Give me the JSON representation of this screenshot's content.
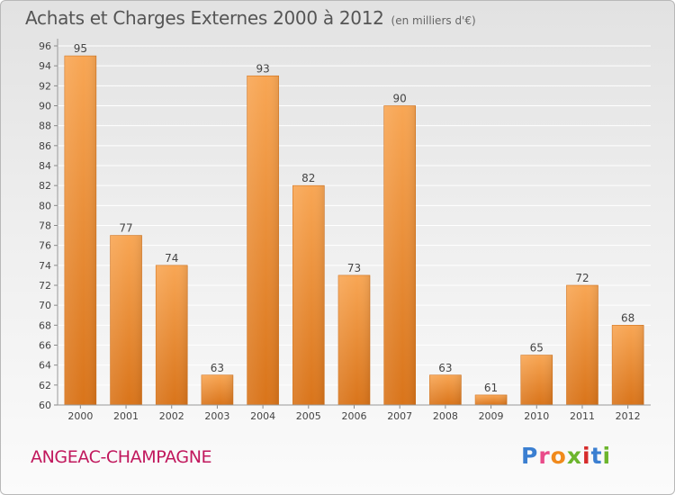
{
  "header": {
    "title": "Achats et Charges Externes 2000 à 2012",
    "unit": "(en milliers d'€)"
  },
  "footer": {
    "commune": "ANGEAC-CHAMPAGNE",
    "brand_letters": [
      "P",
      "r",
      "o",
      "x",
      "i",
      "t",
      "i"
    ],
    "brand_colors": [
      "#3b7fd1",
      "#e94b8a",
      "#f08a1c",
      "#6cb52d",
      "#d62b2b",
      "#3b7fd1",
      "#6cb52d"
    ]
  },
  "chart_data": {
    "type": "bar",
    "title": "Achats et Charges Externes 2000 à 2012",
    "subtitle": "(en milliers d'€)",
    "xlabel": "",
    "ylabel": "",
    "categories": [
      "2000",
      "2001",
      "2002",
      "2003",
      "2004",
      "2005",
      "2006",
      "2007",
      "2008",
      "2009",
      "2010",
      "2011",
      "2012"
    ],
    "values": [
      95,
      77,
      74,
      63,
      93,
      82,
      73,
      90,
      63,
      61,
      65,
      72,
      68
    ],
    "ylim": [
      60,
      96
    ],
    "yticks": [
      60,
      62,
      64,
      66,
      68,
      70,
      72,
      74,
      76,
      78,
      80,
      82,
      84,
      86,
      88,
      90,
      92,
      94,
      96
    ],
    "grid": true,
    "legend": "none",
    "bar_color_top": "#f8a654",
    "bar_color_bottom": "#d9741a"
  }
}
